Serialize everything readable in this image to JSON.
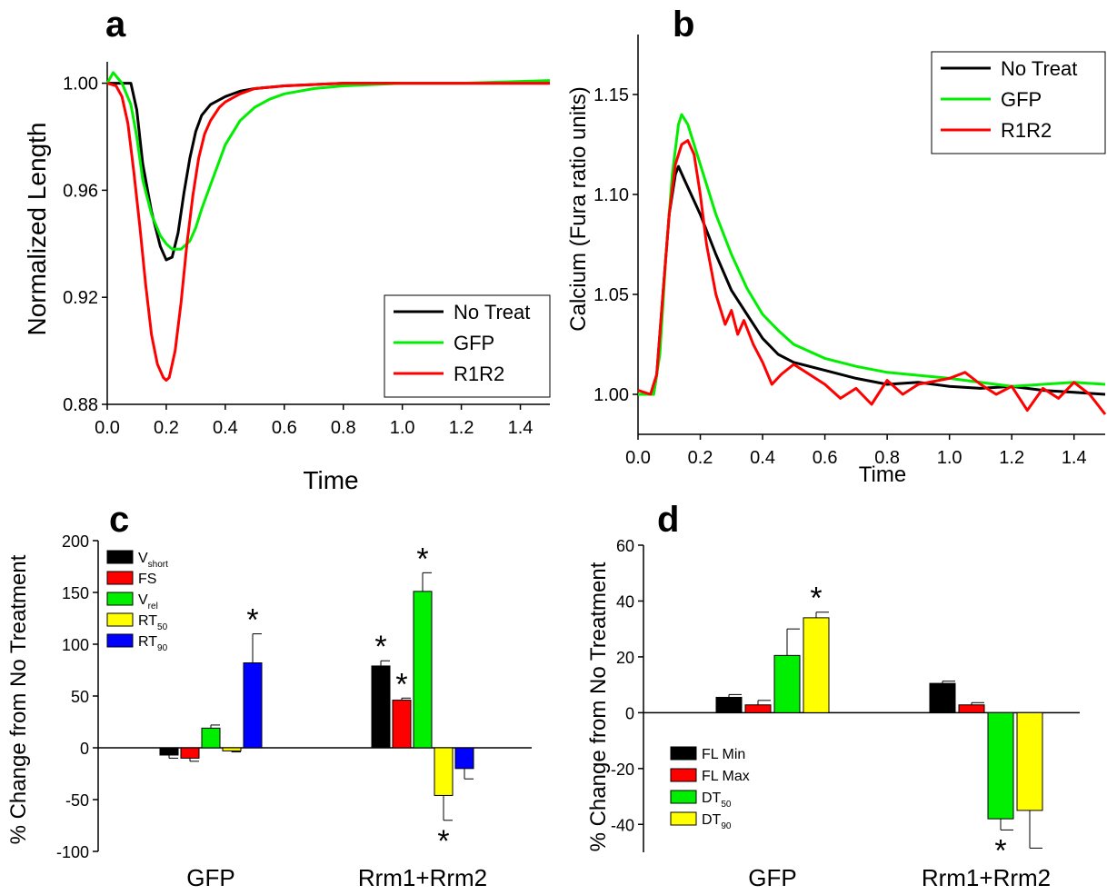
{
  "chart_data": [
    {
      "panel": "a",
      "type": "line",
      "xlabel": "Time",
      "ylabel": "Normalized Length",
      "xlim": [
        0,
        1.5
      ],
      "ylim": [
        0.88,
        1.008
      ],
      "xticks": [
        0.0,
        0.2,
        0.4,
        0.6,
        0.8,
        1.0,
        1.2,
        1.4
      ],
      "xtick_labels": [
        "0.0",
        "0.2",
        "0.4",
        "0.6",
        "0.8",
        "1.0",
        "1.2",
        "1.4"
      ],
      "yticks": [
        0.88,
        0.92,
        0.96,
        1.0
      ],
      "ytick_labels": [
        "0.88",
        "0.92",
        "0.96",
        "1.00"
      ],
      "legend_position": "bottom-right",
      "series": [
        {
          "name": "No Treat",
          "color": "#000000",
          "x": [
            0,
            0.05,
            0.08,
            0.1,
            0.12,
            0.15,
            0.18,
            0.2,
            0.22,
            0.24,
            0.26,
            0.28,
            0.3,
            0.32,
            0.35,
            0.4,
            0.45,
            0.5,
            0.6,
            0.8,
            1.0,
            1.2,
            1.5
          ],
          "y": [
            1.0,
            1.0,
            1.0,
            0.99,
            0.97,
            0.952,
            0.939,
            0.934,
            0.935,
            0.944,
            0.959,
            0.972,
            0.982,
            0.988,
            0.992,
            0.995,
            0.997,
            0.998,
            0.999,
            1.0,
            1.0,
            1.0,
            1.0
          ]
        },
        {
          "name": "GFP",
          "color": "#00ee00",
          "x": [
            0,
            0.02,
            0.05,
            0.08,
            0.1,
            0.12,
            0.15,
            0.18,
            0.2,
            0.22,
            0.25,
            0.28,
            0.3,
            0.32,
            0.35,
            0.38,
            0.4,
            0.45,
            0.5,
            0.55,
            0.6,
            0.7,
            0.8,
            1.0,
            1.2,
            1.5
          ],
          "y": [
            1.0,
            1.004,
            1.0,
            0.992,
            0.98,
            0.964,
            0.951,
            0.943,
            0.94,
            0.938,
            0.938,
            0.941,
            0.946,
            0.953,
            0.962,
            0.971,
            0.977,
            0.986,
            0.991,
            0.994,
            0.996,
            0.998,
            0.999,
            1.0,
            1.0,
            1.001
          ]
        },
        {
          "name": "R1R2",
          "color": "#ff0000",
          "x": [
            0,
            0.03,
            0.05,
            0.07,
            0.09,
            0.11,
            0.13,
            0.15,
            0.17,
            0.19,
            0.2,
            0.21,
            0.23,
            0.25,
            0.27,
            0.29,
            0.31,
            0.33,
            0.35,
            0.38,
            0.4,
            0.45,
            0.5,
            0.6,
            0.8,
            1.0,
            1.2,
            1.5
          ],
          "y": [
            1.0,
            0.999,
            0.995,
            0.985,
            0.967,
            0.947,
            0.925,
            0.906,
            0.895,
            0.89,
            0.889,
            0.89,
            0.9,
            0.918,
            0.94,
            0.958,
            0.972,
            0.981,
            0.986,
            0.991,
            0.993,
            0.996,
            0.998,
            0.999,
            1.0,
            1.0,
            1.0,
            1.0
          ]
        }
      ]
    },
    {
      "panel": "b",
      "type": "line",
      "xlabel": "Time",
      "ylabel": "Calcium (Fura ratio units)",
      "xlim": [
        0,
        1.5
      ],
      "ylim": [
        0.98,
        1.18
      ],
      "xticks": [
        0.0,
        0.2,
        0.4,
        0.6,
        0.8,
        1.0,
        1.2,
        1.4
      ],
      "xtick_labels": [
        "0.0",
        "0.2",
        "0.4",
        "0.6",
        "0.8",
        "1.0",
        "1.2",
        "1.4"
      ],
      "yticks": [
        1.0,
        1.05,
        1.1,
        1.15
      ],
      "ytick_labels": [
        "1.00",
        "1.05",
        "1.10",
        "1.15"
      ],
      "legend_position": "top-right",
      "series": [
        {
          "name": "No Treat",
          "color": "#000000",
          "x": [
            0,
            0.05,
            0.06,
            0.08,
            0.1,
            0.12,
            0.13,
            0.15,
            0.2,
            0.25,
            0.3,
            0.35,
            0.4,
            0.45,
            0.5,
            0.6,
            0.7,
            0.8,
            0.9,
            1.0,
            1.1,
            1.2,
            1.3,
            1.4,
            1.5
          ],
          "y": [
            1.0,
            1.0,
            1.01,
            1.05,
            1.09,
            1.11,
            1.114,
            1.107,
            1.09,
            1.07,
            1.052,
            1.04,
            1.028,
            1.02,
            1.016,
            1.012,
            1.008,
            1.005,
            1.006,
            1.004,
            1.003,
            1.004,
            1.002,
            1.001,
            1.0
          ]
        },
        {
          "name": "GFP",
          "color": "#00ee00",
          "x": [
            0,
            0.05,
            0.07,
            0.09,
            0.11,
            0.13,
            0.14,
            0.16,
            0.2,
            0.25,
            0.3,
            0.35,
            0.4,
            0.45,
            0.5,
            0.6,
            0.7,
            0.8,
            1.0,
            1.2,
            1.4,
            1.5
          ],
          "y": [
            1.0,
            1.0,
            1.02,
            1.07,
            1.11,
            1.135,
            1.14,
            1.135,
            1.115,
            1.09,
            1.07,
            1.053,
            1.04,
            1.032,
            1.025,
            1.018,
            1.014,
            1.011,
            1.008,
            1.004,
            1.006,
            1.005
          ]
        },
        {
          "name": "R1R2",
          "color": "#ff0000",
          "x": [
            0,
            0.04,
            0.06,
            0.08,
            0.1,
            0.12,
            0.14,
            0.16,
            0.18,
            0.2,
            0.22,
            0.25,
            0.28,
            0.3,
            0.32,
            0.34,
            0.37,
            0.4,
            0.43,
            0.46,
            0.5,
            0.55,
            0.6,
            0.65,
            0.7,
            0.75,
            0.8,
            0.85,
            0.9,
            1.0,
            1.05,
            1.1,
            1.15,
            1.2,
            1.25,
            1.3,
            1.35,
            1.4,
            1.45,
            1.5
          ],
          "y": [
            1.002,
            1.0,
            1.01,
            1.05,
            1.09,
            1.115,
            1.125,
            1.127,
            1.12,
            1.1,
            1.075,
            1.05,
            1.035,
            1.042,
            1.03,
            1.037,
            1.025,
            1.016,
            1.005,
            1.01,
            1.015,
            1.01,
            1.005,
            0.998,
            1.003,
            0.995,
            1.007,
            1.0,
            1.005,
            1.008,
            1.011,
            1.005,
            1.0,
            1.004,
            0.992,
            1.003,
            0.998,
            1.006,
            1.0,
            0.99
          ]
        }
      ]
    },
    {
      "panel": "c",
      "type": "bar",
      "ylabel": "% Change from No Treatment",
      "ylim": [
        -100,
        200
      ],
      "yticks": [
        -100,
        -50,
        0,
        50,
        100,
        150,
        200
      ],
      "categories": [
        "GFP",
        "Rrm1+Rrm2"
      ],
      "legend_position": "top-left",
      "series": [
        {
          "name": "V",
          "sub": "short",
          "color": "#000000",
          "values": [
            -7,
            79
          ],
          "errors": [
            3,
            5
          ],
          "sig": [
            false,
            true
          ]
        },
        {
          "name": "FS",
          "sub": "",
          "color": "#ff0000",
          "values": [
            -10,
            46
          ],
          "errors": [
            3,
            2
          ],
          "sig": [
            false,
            true
          ]
        },
        {
          "name": "V",
          "sub": "rel",
          "color": "#00ee00",
          "values": [
            19,
            151
          ],
          "errors": [
            3,
            18
          ],
          "sig": [
            false,
            true
          ]
        },
        {
          "name": "RT",
          "sub": "50",
          "color": "#ffff00",
          "values": [
            -3,
            -46
          ],
          "errors": [
            1,
            24
          ],
          "sig": [
            false,
            true
          ]
        },
        {
          "name": "RT",
          "sub": "90",
          "color": "#0000ff",
          "values": [
            82,
            -20
          ],
          "errors": [
            28,
            10
          ],
          "sig": [
            true,
            false
          ]
        }
      ]
    },
    {
      "panel": "d",
      "type": "bar",
      "ylabel": "% Change from No Treatment",
      "ylim": [
        -50,
        60
      ],
      "yticks": [
        -40,
        -20,
        0,
        20,
        40,
        60
      ],
      "categories": [
        "GFP",
        "Rrm1+Rrm2"
      ],
      "legend_position": "bottom-left",
      "series": [
        {
          "name": "FL Min",
          "sub": "",
          "color": "#000000",
          "values": [
            5.5,
            10.5
          ],
          "errors": [
            1,
            0.8
          ],
          "sig": [
            false,
            false
          ]
        },
        {
          "name": "FL Max",
          "sub": "",
          "color": "#ff0000",
          "values": [
            2.8,
            2.8
          ],
          "errors": [
            1.6,
            0.8
          ],
          "sig": [
            false,
            false
          ]
        },
        {
          "name": "DT",
          "sub": "50",
          "color": "#00ee00",
          "values": [
            20.5,
            -38
          ],
          "errors": [
            9.5,
            4
          ],
          "sig": [
            false,
            true
          ]
        },
        {
          "name": "DT",
          "sub": "90",
          "color": "#ffff00",
          "values": [
            34,
            -35
          ],
          "errors": [
            2,
            13.5
          ],
          "sig": [
            true,
            false
          ]
        }
      ]
    }
  ],
  "panels": {
    "a": "a",
    "b": "b",
    "c": "c",
    "d": "d"
  },
  "sig_marker": "*"
}
